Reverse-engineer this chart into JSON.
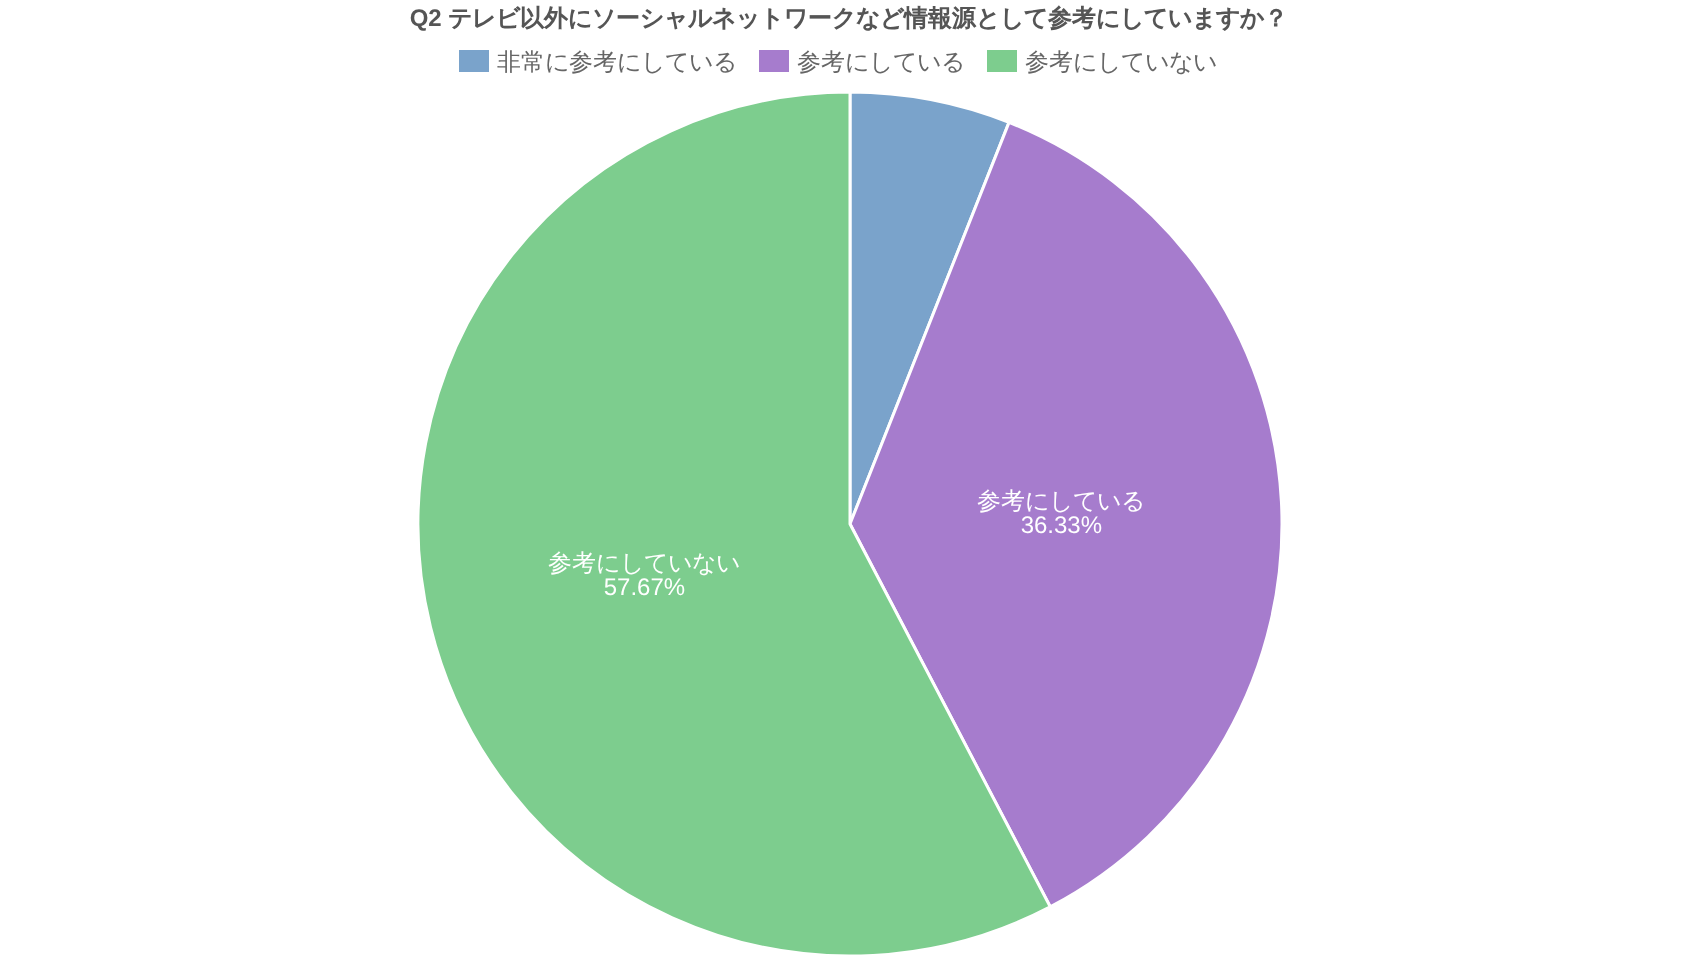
{
  "chart_data": {
    "type": "pie",
    "title": "Q2 テレビ以外にソーシャルネットワークなど情報源として参考にしていますか？",
    "categories": [
      "非常に参考にしている",
      "参考にしている",
      "参考にしていない"
    ],
    "values": [
      6.0,
      36.33,
      57.67
    ],
    "colors": [
      "#7aa3cb",
      "#a67ccd",
      "#7dcd8e"
    ],
    "value_labels": [
      null,
      "36.33%",
      "57.67%"
    ],
    "legend": "top"
  }
}
